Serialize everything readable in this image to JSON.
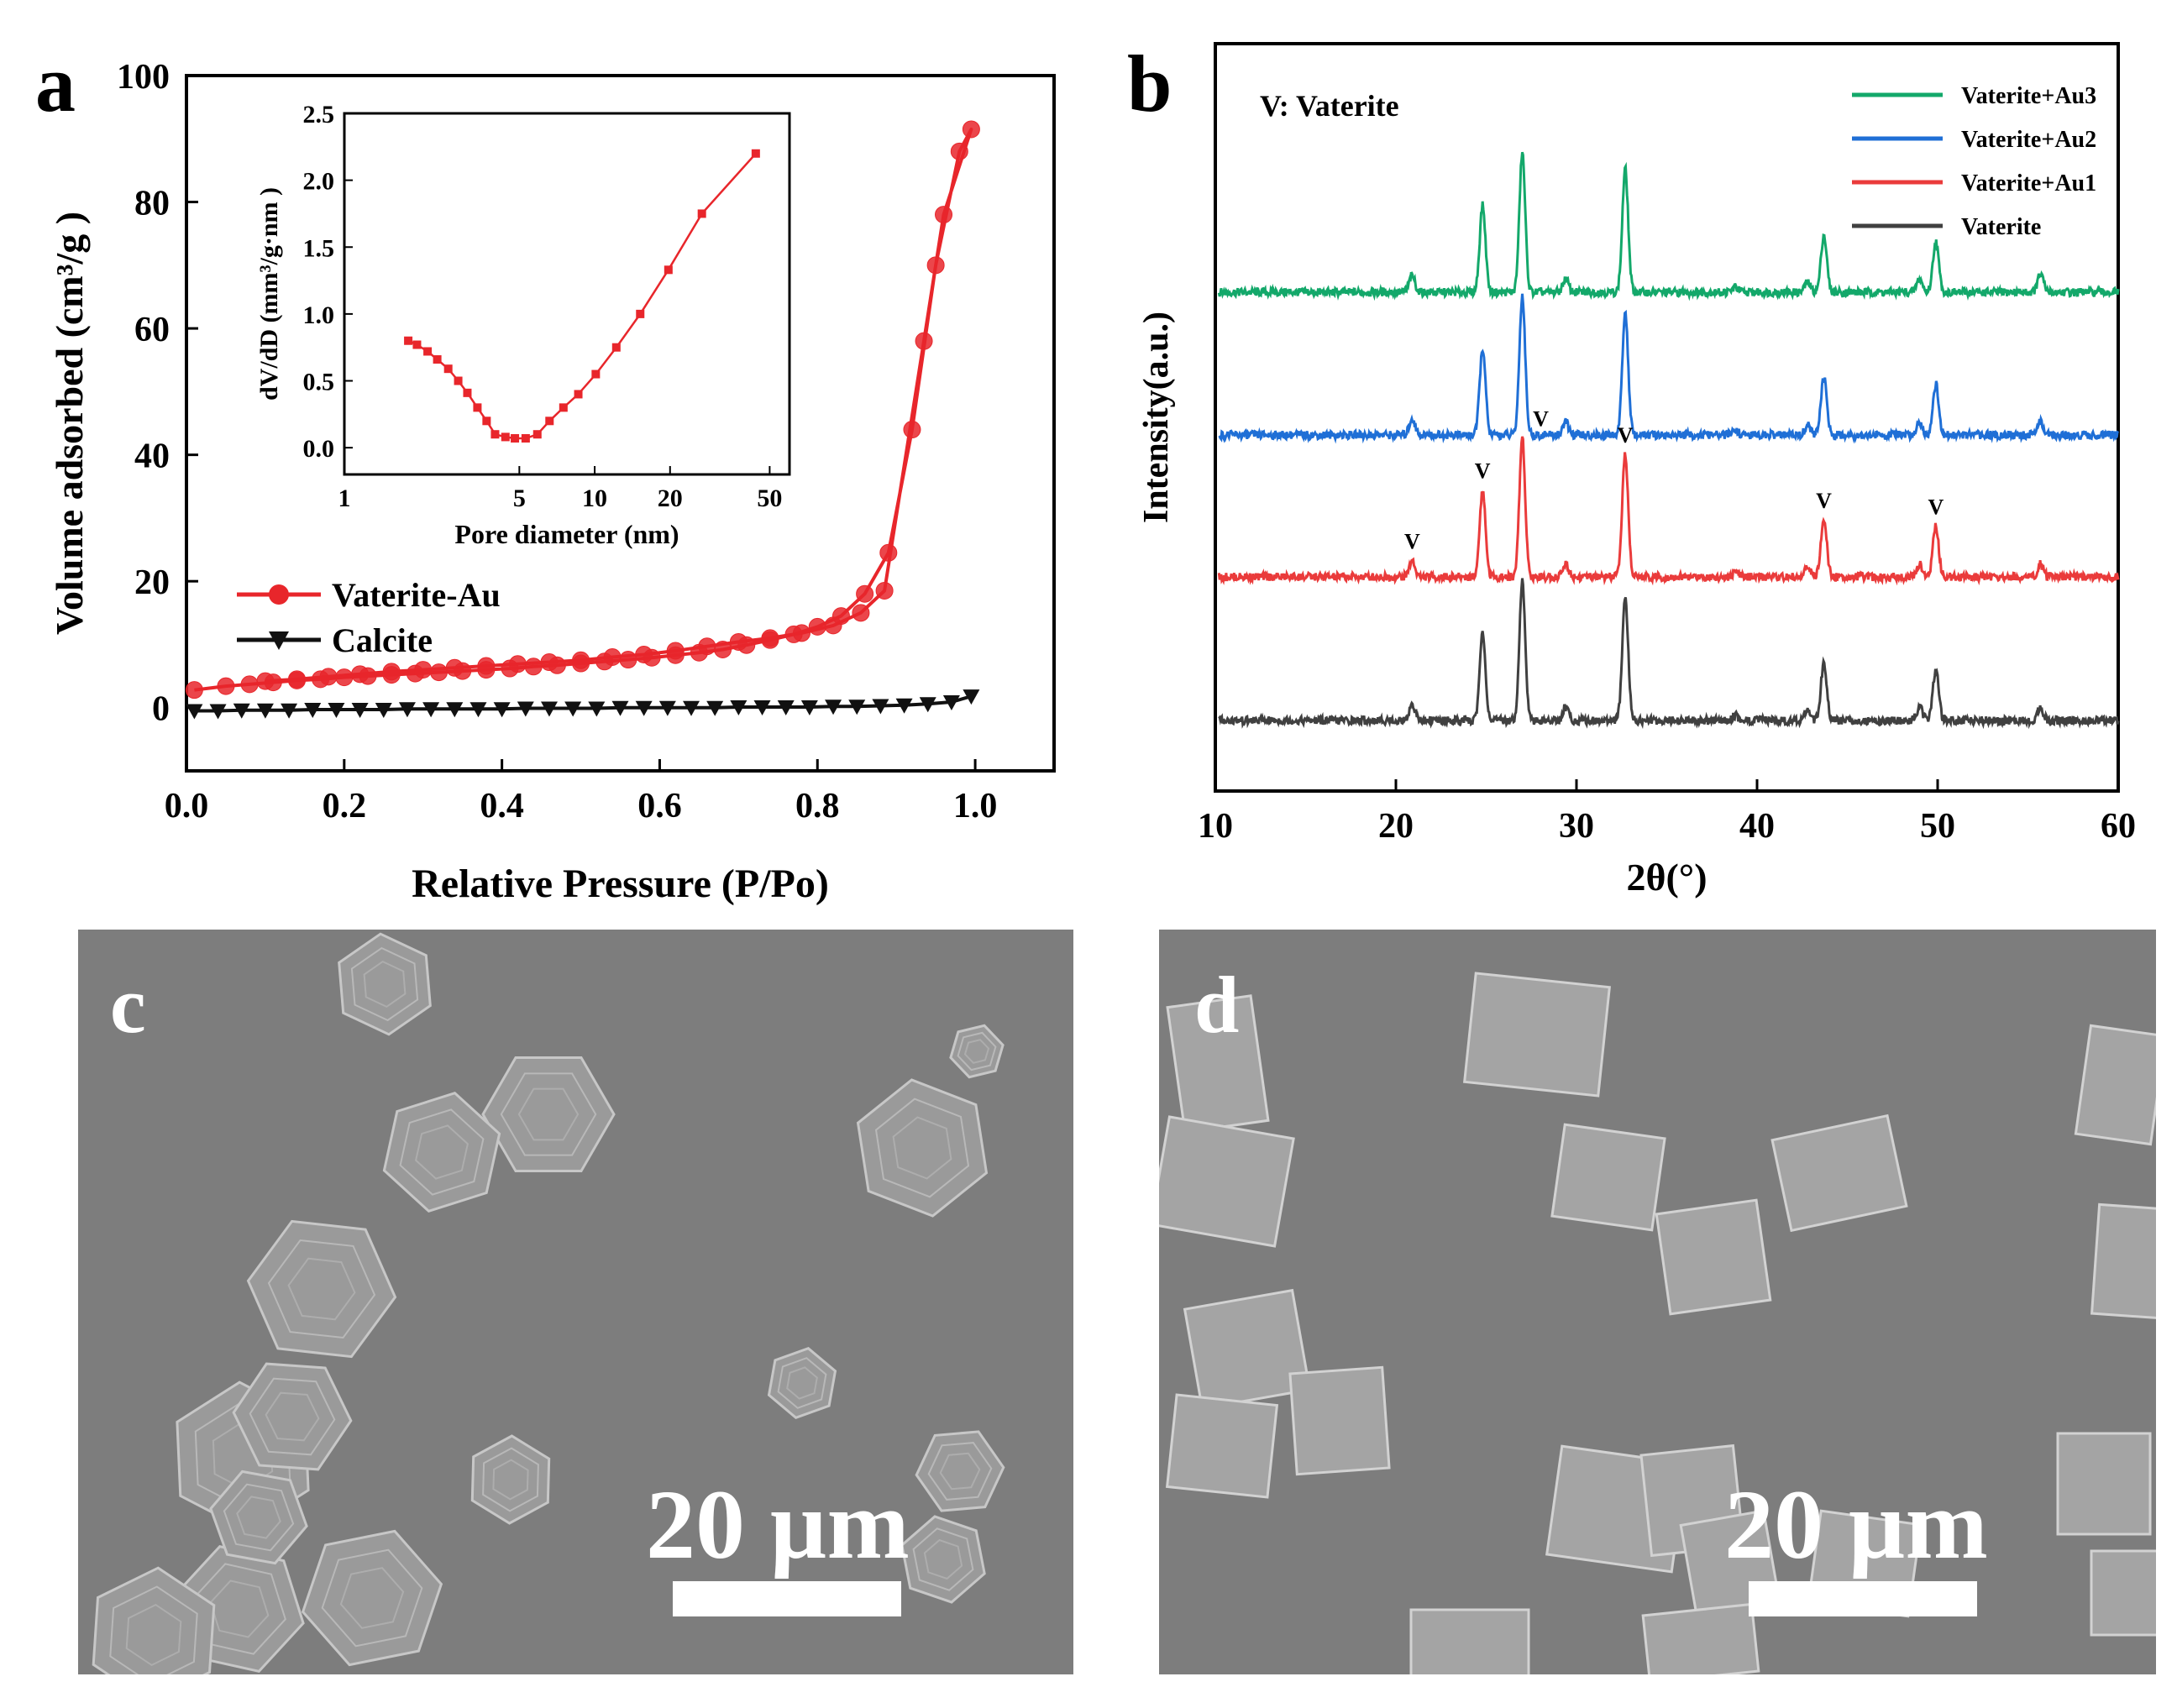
{
  "colors": {
    "red": "#e8262b",
    "black": "#111111",
    "green": "#13a86a",
    "blue": "#1f6fd6",
    "xrd_red": "#ea3b3b",
    "gray": "#404040",
    "sem_bg": "#7d7d7d"
  },
  "panels": {
    "a": "a",
    "b": "b",
    "c": "c",
    "d": "d"
  },
  "sem": {
    "c": {
      "scale_label": "20 µm"
    },
    "d": {
      "scale_label": "20 µm"
    }
  },
  "chart_data": [
    {
      "id": "a",
      "type": "line",
      "xlabel": "Relative Pressure (P/Po)",
      "ylabel": "Volume adsorbed (cm³/g )",
      "xlim": [
        0.0,
        1.1
      ],
      "ylim": [
        -10,
        100
      ],
      "xticks": [
        "0.0",
        "0.2",
        "0.4",
        "0.6",
        "0.8",
        "1.0"
      ],
      "yticks": [
        "0",
        "20",
        "40",
        "60",
        "80",
        "100"
      ],
      "legend_position": "lower-left",
      "series": [
        {
          "name": "Vaterite-Au",
          "marker": "circle",
          "x": [
            0.01,
            0.05,
            0.08,
            0.11,
            0.14,
            0.17,
            0.2,
            0.23,
            0.26,
            0.29,
            0.32,
            0.35,
            0.38,
            0.41,
            0.44,
            0.47,
            0.5,
            0.53,
            0.56,
            0.59,
            0.62,
            0.65,
            0.68,
            0.71,
            0.74,
            0.77,
            0.8,
            0.83,
            0.86,
            0.89,
            0.92,
            0.95,
            0.98,
            0.995,
            0.96,
            0.935,
            0.885,
            0.855,
            0.82,
            0.78,
            0.74,
            0.7,
            0.66,
            0.62,
            0.58,
            0.54,
            0.5,
            0.46,
            0.42,
            0.38,
            0.34,
            0.3,
            0.26,
            0.22,
            0.18,
            0.14,
            0.1
          ],
          "y": [
            2.8,
            3.4,
            3.7,
            4.0,
            4.3,
            4.5,
            4.8,
            5.0,
            5.2,
            5.4,
            5.6,
            5.8,
            6.0,
            6.2,
            6.5,
            6.7,
            7.0,
            7.3,
            7.6,
            7.9,
            8.3,
            8.7,
            9.2,
            9.9,
            10.7,
            11.6,
            12.8,
            14.5,
            18.0,
            24.5,
            44.0,
            70.0,
            88.0,
            91.5,
            78.0,
            58.0,
            18.5,
            15.0,
            13.0,
            11.8,
            11.0,
            10.4,
            9.7,
            9.0,
            8.4,
            8.0,
            7.5,
            7.2,
            6.9,
            6.6,
            6.3,
            6.0,
            5.7,
            5.3,
            4.9,
            4.5,
            4.2
          ]
        },
        {
          "name": "Calcite",
          "marker": "triangle-down",
          "x": [
            0.01,
            0.04,
            0.07,
            0.1,
            0.13,
            0.16,
            0.19,
            0.22,
            0.25,
            0.28,
            0.31,
            0.34,
            0.37,
            0.4,
            0.43,
            0.46,
            0.49,
            0.52,
            0.55,
            0.58,
            0.61,
            0.64,
            0.67,
            0.7,
            0.73,
            0.76,
            0.79,
            0.82,
            0.85,
            0.88,
            0.91,
            0.94,
            0.97,
            0.995
          ],
          "y": [
            -0.5,
            -0.5,
            -0.4,
            -0.4,
            -0.4,
            -0.3,
            -0.3,
            -0.3,
            -0.3,
            -0.2,
            -0.2,
            -0.2,
            -0.2,
            -0.2,
            -0.1,
            -0.1,
            -0.1,
            -0.1,
            0.0,
            0.0,
            0.0,
            0.0,
            0.0,
            0.1,
            0.1,
            0.1,
            0.1,
            0.2,
            0.2,
            0.3,
            0.4,
            0.6,
            0.9,
            1.8
          ]
        }
      ],
      "inset": {
        "type": "line",
        "xlabel": "Pore diameter (nm)",
        "ylabel": "dV/dD (mm³/g·nm )",
        "xscale": "log",
        "xlim": [
          1,
          60
        ],
        "ylim": [
          -0.2,
          2.5
        ],
        "xticks": [
          "1",
          "5",
          "10",
          "20",
          "50"
        ],
        "yticks": [
          "0.0",
          "0.5",
          "1.0",
          "1.5",
          "2.0",
          "2.5"
        ],
        "marker": "square",
        "x": [
          1.8,
          1.95,
          2.15,
          2.35,
          2.6,
          2.85,
          3.1,
          3.4,
          3.7,
          4.0,
          4.4,
          4.8,
          5.3,
          5.9,
          6.6,
          7.5,
          8.6,
          10.1,
          12.2,
          15.2,
          19.7,
          26.8,
          44.0
        ],
        "y": [
          0.8,
          0.77,
          0.72,
          0.66,
          0.59,
          0.5,
          0.41,
          0.3,
          0.2,
          0.1,
          0.08,
          0.07,
          0.07,
          0.1,
          0.2,
          0.3,
          0.4,
          0.55,
          0.75,
          1.0,
          1.33,
          1.75,
          2.2
        ]
      }
    },
    {
      "id": "b",
      "type": "line",
      "xlabel": "2θ(°)",
      "ylabel": "Intensity(a.u.)",
      "xlim": [
        10,
        60
      ],
      "xticks": [
        "10",
        "20",
        "30",
        "40",
        "50",
        "60"
      ],
      "annotation": "V: Vaterite",
      "peak_marker_label": "V",
      "legend_position": "top-right",
      "peaks_2theta": [
        20.9,
        24.8,
        27.0,
        29.4,
        32.7,
        38.8,
        42.8,
        43.7,
        49.0,
        49.9,
        55.7
      ],
      "series": [
        {
          "name": "Vaterite+Au3",
          "color_key": "green",
          "peak_heights": [
            10,
            53,
            85,
            8,
            75,
            3,
            6,
            35,
            8,
            31,
            11
          ]
        },
        {
          "name": "Vaterite+Au2",
          "color_key": "blue",
          "peak_heights": [
            10,
            53,
            85,
            8,
            75,
            3,
            6,
            35,
            8,
            31,
            8
          ]
        },
        {
          "name": "Vaterite+Au1",
          "color_key": "xrd_red",
          "peak_heights": [
            10,
            53,
            85,
            8,
            75,
            3,
            6,
            35,
            8,
            31,
            8
          ]
        },
        {
          "name": "Vaterite",
          "color_key": "gray",
          "peak_heights": [
            10,
            53,
            85,
            8,
            75,
            3,
            6,
            35,
            8,
            31,
            8
          ]
        }
      ],
      "peak_labels_2theta": [
        20.9,
        24.8,
        27.0,
        32.7,
        43.7,
        49.9
      ]
    }
  ]
}
